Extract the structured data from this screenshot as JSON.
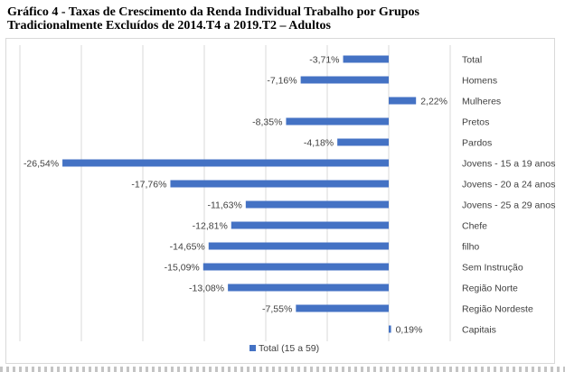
{
  "title_line1": "Gráfico 4 - Taxas de Crescimento da Renda Individual Trabalho por Grupos",
  "title_line2": "Tradicionalmente Excluídos de 2014.T4 a 2019.T2 – Adultos",
  "colors": {
    "bar": "#4472c4",
    "grid": "#d9d9d9",
    "text": "#404040"
  },
  "chart_data": {
    "type": "bar",
    "orientation": "horizontal",
    "categories": [
      "Total",
      "Homens",
      "Mulheres",
      "Pretos",
      "Pardos",
      "Jovens - 15 a 19 anos",
      "Jovens - 20 a 24 anos",
      "Jovens - 25 a 29 anos",
      "Chefe",
      "filho",
      "Sem Instrução",
      "Região Norte",
      "Região Nordeste",
      "Capitais"
    ],
    "series": [
      {
        "name": "Total (15 a 59)",
        "values": [
          -3.71,
          -7.16,
          2.22,
          -8.35,
          -4.18,
          -26.54,
          -17.76,
          -11.63,
          -12.81,
          -14.65,
          -15.09,
          -13.08,
          -7.55,
          0.19
        ],
        "labels": [
          "-3,71%",
          "-7,16%",
          "2,22%",
          "-8,35%",
          "-4,18%",
          "-26,54%",
          "-17,76%",
          "-11,63%",
          "-12,81%",
          "-14,65%",
          "-15,09%",
          "-13,08%",
          "-7,55%",
          "0,19%"
        ]
      }
    ],
    "xlim": [
      -30,
      5
    ],
    "grid": true,
    "legend": "bottom"
  }
}
